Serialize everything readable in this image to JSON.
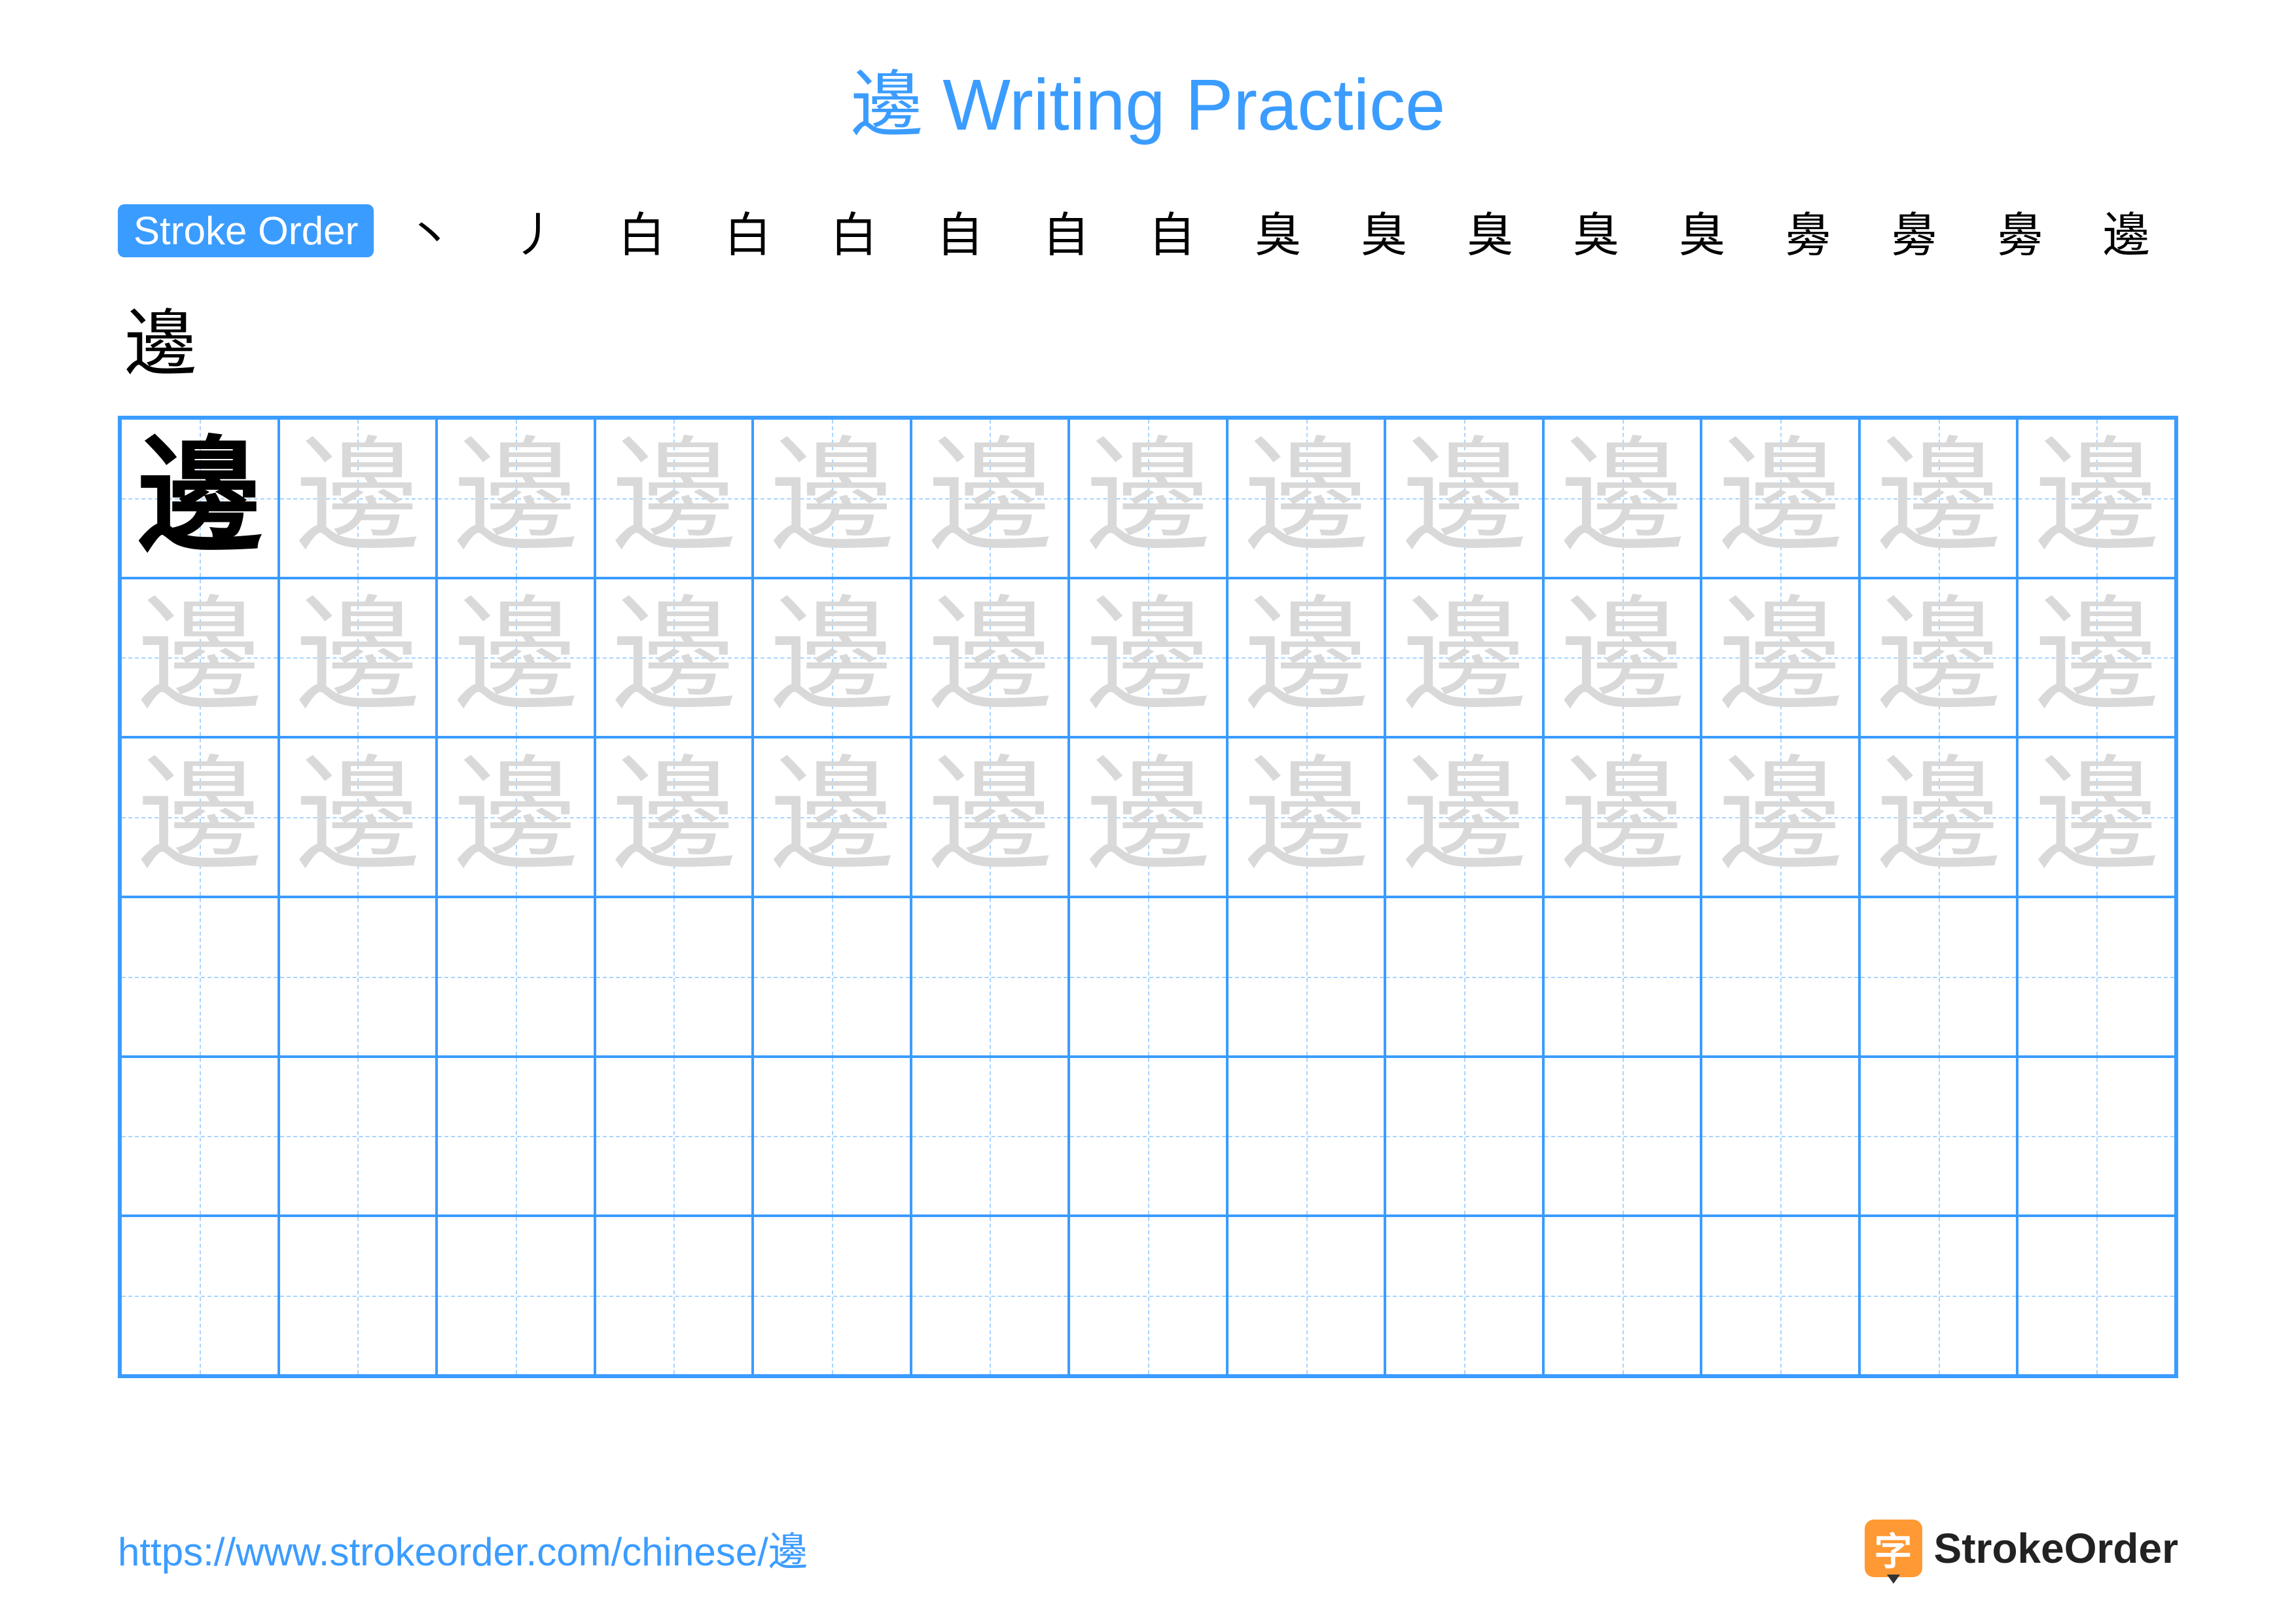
{
  "title_char": "邊",
  "title_text": "Writing Practice",
  "title_color": "#3b9cff",
  "stroke_label": "Stroke Order",
  "stroke_steps": [
    "丶",
    "丿",
    "白",
    "白",
    "白",
    "自",
    "自",
    "自",
    "臭",
    "臭",
    "臭",
    "臭",
    "臭",
    "臱",
    "臱",
    "臱",
    "邊"
  ],
  "extra_char": "邊",
  "grid": {
    "cols": 13,
    "rows": 6,
    "trace_rows": 3,
    "character": "邊",
    "border_color": "#3b9cff",
    "guide_color": "#a8d4ff",
    "solid_color": "#000000",
    "trace_color": "#d9d9d9"
  },
  "footer_url": "https://www.strokeorder.com/chinese/邊",
  "logo_char": "字",
  "logo_text": "StrokeOrder"
}
